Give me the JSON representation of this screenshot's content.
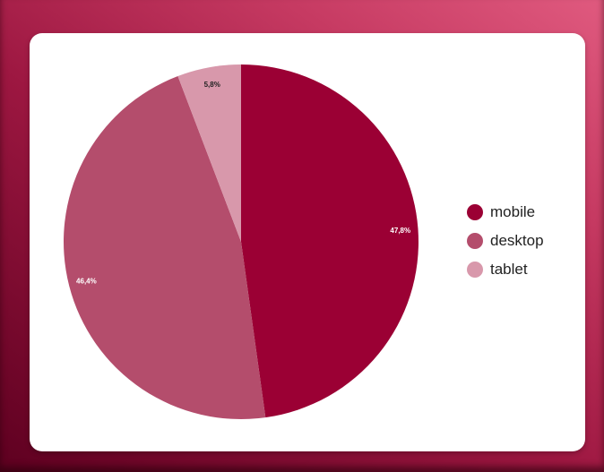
{
  "chart_data": {
    "type": "pie",
    "slices": [
      {
        "label": "mobile",
        "value": 47.8,
        "display": "47,8%",
        "color": "#9b0034",
        "label_color": "#ffffff"
      },
      {
        "label": "desktop",
        "value": 46.4,
        "display": "46,4%",
        "color": "#b44d6c",
        "label_color": "#ffffff"
      },
      {
        "label": "tablet",
        "value": 5.8,
        "display": "5,8%",
        "color": "#d898ab",
        "label_color": "#222222"
      }
    ],
    "legend_position": "right",
    "start_angle": "top, clockwise"
  },
  "legend": {
    "items": [
      {
        "label": "mobile",
        "color": "#9b0034"
      },
      {
        "label": "desktop",
        "color": "#b44d6c"
      },
      {
        "label": "tablet",
        "color": "#d898ab"
      }
    ]
  },
  "theme": {
    "background": "#9d1741",
    "card": "#ffffff"
  }
}
